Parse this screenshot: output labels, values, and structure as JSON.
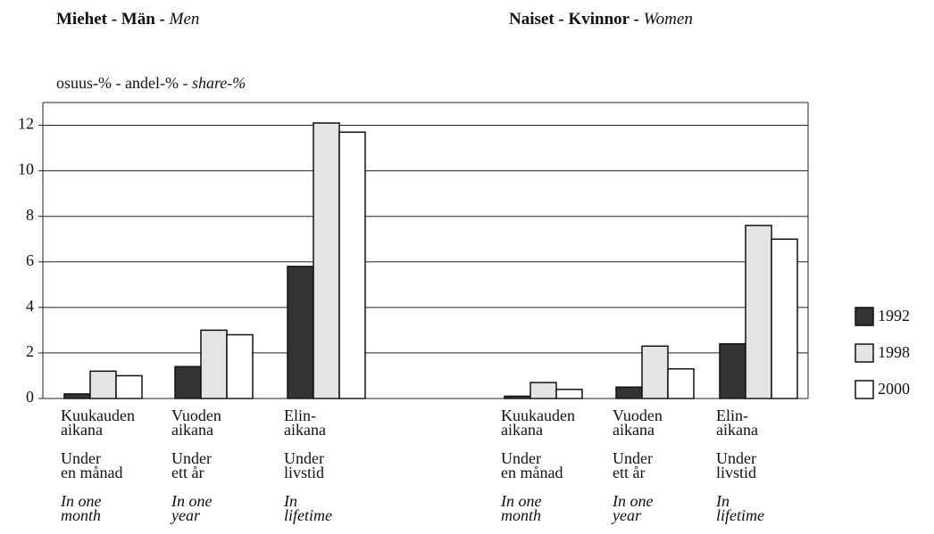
{
  "chart_data": {
    "type": "bar",
    "panels": [
      [
        "Miehet - Män - ",
        "Men"
      ],
      [
        "Naiset - Kvinnor - ",
        "Women"
      ]
    ],
    "ylabel": [
      "osuus-% - andel-% - ",
      "share-%"
    ],
    "categories": [
      [
        [
          "Kuukauden",
          "aikana"
        ],
        [
          "Under",
          "en månad"
        ],
        [
          "In one",
          "month"
        ]
      ],
      [
        [
          "Vuoden",
          "aikana"
        ],
        [
          "Under",
          "ett år"
        ],
        [
          "In one",
          "year"
        ]
      ],
      [
        [
          "Elin-",
          "aikana"
        ],
        [
          "Under",
          "livstid"
        ],
        [
          "In",
          "lifetime"
        ]
      ],
      [
        [
          "Kuukauden",
          "aikana"
        ],
        [
          "Under",
          "en månad"
        ],
        [
          "In one",
          "month"
        ]
      ],
      [
        [
          "Vuoden",
          "aikana"
        ],
        [
          "Under",
          "ett år"
        ],
        [
          "In one",
          "year"
        ]
      ],
      [
        [
          "Elin-",
          "aikana"
        ],
        [
          "Under",
          "livstid"
        ],
        [
          "In",
          "lifetime"
        ]
      ]
    ],
    "series": [
      {
        "name": "1992",
        "color": "#333333",
        "values": [
          0.2,
          1.4,
          5.8,
          0.1,
          0.5,
          2.4
        ]
      },
      {
        "name": "1998",
        "color": "#e4e4e4",
        "values": [
          1.2,
          3.0,
          12.1,
          0.7,
          2.3,
          7.6
        ]
      },
      {
        "name": "2000",
        "color": "#ffffff",
        "values": [
          1.0,
          2.8,
          11.7,
          0.4,
          1.3,
          7.0
        ]
      }
    ],
    "ylim": [
      0,
      13
    ],
    "yticks": [
      0,
      2,
      4,
      6,
      8,
      10,
      12
    ],
    "grid": true,
    "legend": "right"
  }
}
